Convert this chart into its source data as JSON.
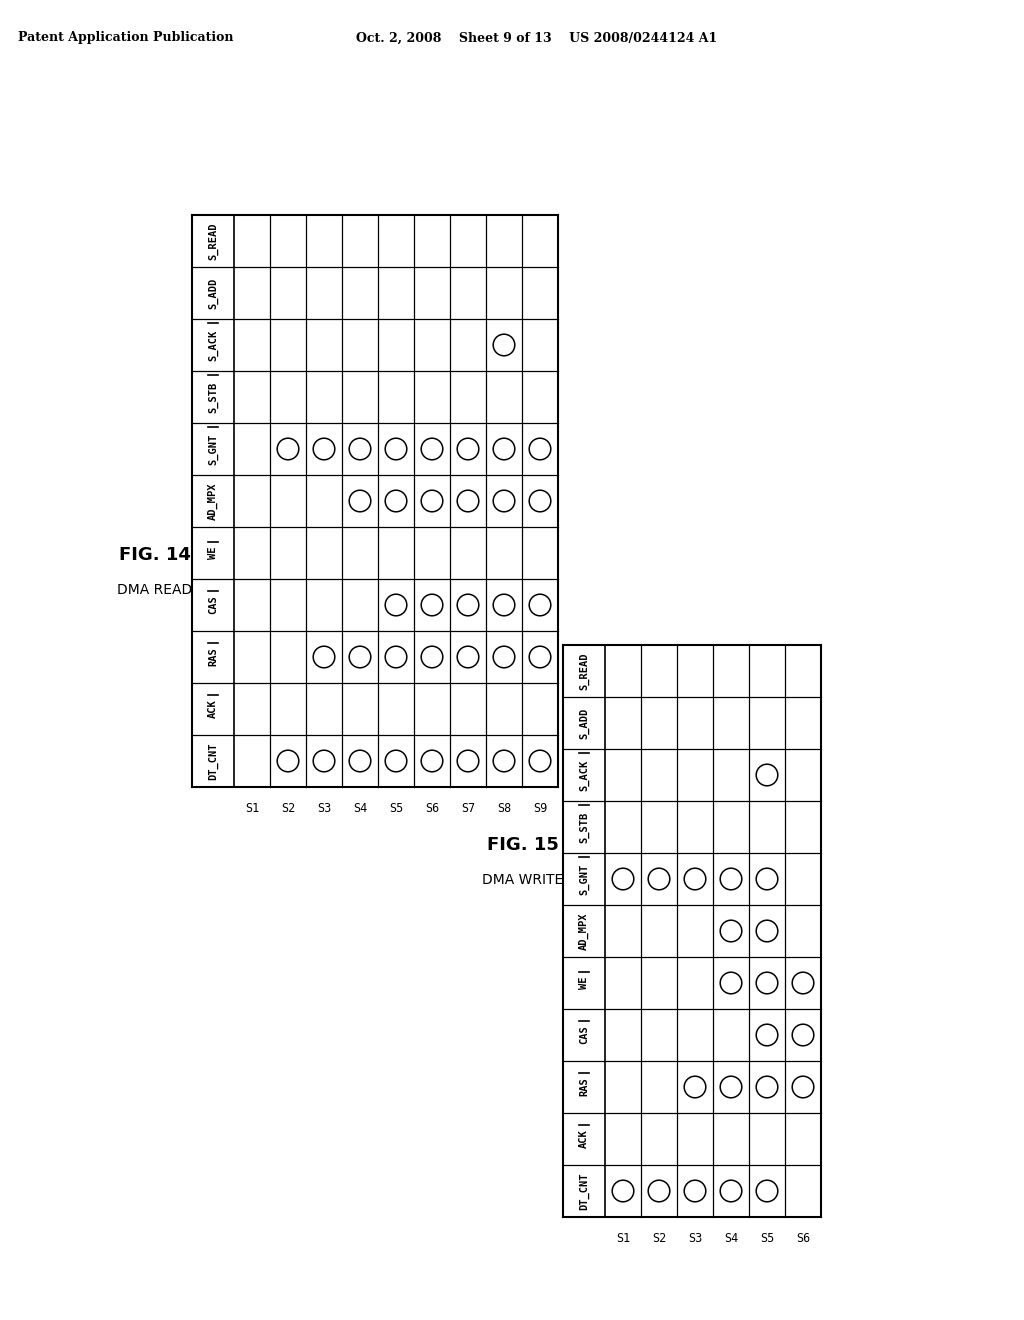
{
  "header_left": "Patent Application Publication",
  "header_right": "Oct. 2, 2008    Sheet 9 of 13    US 2008/0244124 A1",
  "fig14": {
    "title": "FIG. 14",
    "subtitle": "DMA READ",
    "signals": [
      "S_READ",
      "S_ADD",
      "S_ACK",
      "S_STB",
      "S_GNT",
      "AD_MPX",
      "WE",
      "CAS",
      "RAS",
      "ACK",
      "DT_CNT"
    ],
    "states": [
      "S1",
      "S2",
      "S3",
      "S4",
      "S5",
      "S6",
      "S7",
      "S8",
      "S9"
    ],
    "overline_signals": [
      "S_ACK",
      "S_STB",
      "S_GNT",
      "WE",
      "CAS",
      "RAS",
      "ACK"
    ],
    "circles": [
      [
        4,
        1
      ],
      [
        4,
        2
      ],
      [
        4,
        3
      ],
      [
        4,
        4
      ],
      [
        4,
        5
      ],
      [
        4,
        6
      ],
      [
        4,
        7
      ],
      [
        4,
        8
      ],
      [
        5,
        3
      ],
      [
        5,
        4
      ],
      [
        5,
        5
      ],
      [
        5,
        6
      ],
      [
        5,
        7
      ],
      [
        5,
        8
      ],
      [
        7,
        4
      ],
      [
        7,
        5
      ],
      [
        7,
        6
      ],
      [
        7,
        7
      ],
      [
        7,
        8
      ],
      [
        8,
        2
      ],
      [
        8,
        3
      ],
      [
        8,
        4
      ],
      [
        8,
        5
      ],
      [
        8,
        6
      ],
      [
        8,
        7
      ],
      [
        8,
        8
      ],
      [
        2,
        7
      ],
      [
        10,
        1
      ],
      [
        10,
        2
      ],
      [
        10,
        3
      ],
      [
        10,
        4
      ],
      [
        10,
        5
      ],
      [
        10,
        6
      ],
      [
        10,
        7
      ],
      [
        10,
        8
      ]
    ]
  },
  "fig15": {
    "title": "FIG. 15",
    "subtitle": "DMA WRITE",
    "signals": [
      "S_READ",
      "S_ADD",
      "S_ACK",
      "S_STB",
      "S_GNT",
      "AD_MPX",
      "WE",
      "CAS",
      "RAS",
      "ACK",
      "DT_CNT"
    ],
    "states": [
      "S1",
      "S2",
      "S3",
      "S4",
      "S5",
      "S6"
    ],
    "overline_signals": [
      "S_ACK",
      "S_STB",
      "S_GNT",
      "WE",
      "CAS",
      "RAS",
      "ACK"
    ],
    "circles": [
      [
        4,
        0
      ],
      [
        4,
        1
      ],
      [
        4,
        2
      ],
      [
        4,
        3
      ],
      [
        4,
        4
      ],
      [
        5,
        3
      ],
      [
        5,
        4
      ],
      [
        6,
        3
      ],
      [
        6,
        4
      ],
      [
        6,
        5
      ],
      [
        7,
        4
      ],
      [
        7,
        5
      ],
      [
        8,
        2
      ],
      [
        8,
        3
      ],
      [
        8,
        4
      ],
      [
        8,
        5
      ],
      [
        2,
        4
      ],
      [
        10,
        0
      ],
      [
        10,
        1
      ],
      [
        10,
        2
      ],
      [
        10,
        3
      ],
      [
        10,
        4
      ]
    ]
  },
  "background": "#ffffff"
}
